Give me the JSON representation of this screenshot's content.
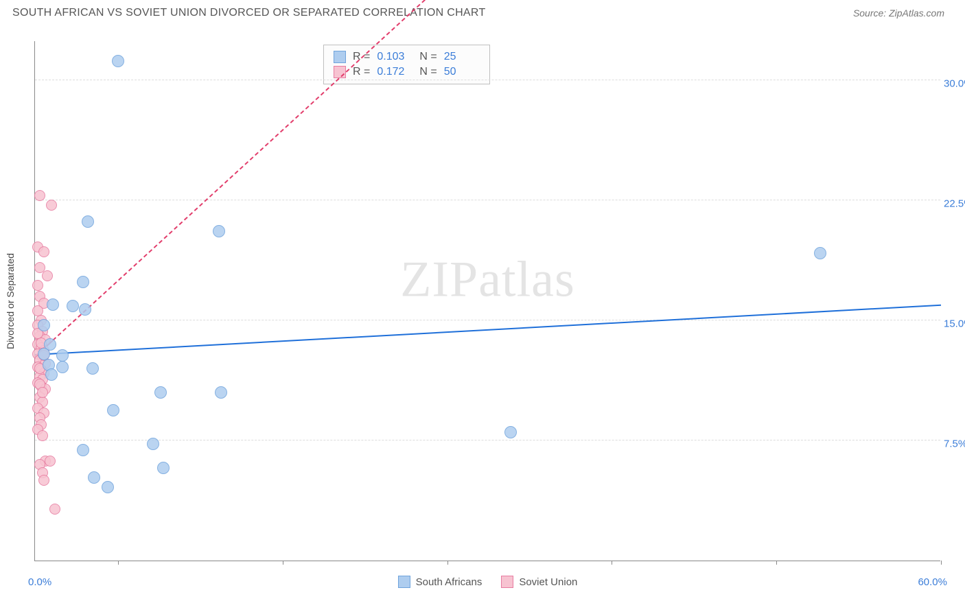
{
  "header": {
    "title": "SOUTH AFRICAN VS SOVIET UNION DIVORCED OR SEPARATED CORRELATION CHART",
    "source": "Source: ZipAtlas.com"
  },
  "chart": {
    "type": "scatter",
    "background_color": "#ffffff",
    "grid_color": "#dcdcdc",
    "axis_color": "#888888",
    "y_axis_label": "Divorced or Separated",
    "xlim": [
      0,
      60
    ],
    "ylim": [
      0,
      32.5
    ],
    "x_min_label": "0.0%",
    "x_max_label": "60.0%",
    "x_tick_positions": [
      5.5,
      16.4,
      27.3,
      38.2,
      49.1,
      60.0
    ],
    "y_ticks": [
      {
        "v": 7.5,
        "label": "7.5%"
      },
      {
        "v": 15.0,
        "label": "15.0%"
      },
      {
        "v": 22.5,
        "label": "22.5%"
      },
      {
        "v": 30.0,
        "label": "30.0%"
      }
    ],
    "watermark": "ZIPatlas",
    "series": [
      {
        "name": "South Africans",
        "fill": "#aecdef",
        "stroke": "#6fa3dc",
        "marker_radius": 9,
        "trend": {
          "y_at_x0": 12.8,
          "y_at_xmax": 15.9,
          "solid_until_x": 60,
          "color": "#1e6fd9",
          "width": 2.5
        },
        "points": [
          {
            "x": 5.5,
            "y": 31.2
          },
          {
            "x": 3.5,
            "y": 21.2
          },
          {
            "x": 12.2,
            "y": 20.6
          },
          {
            "x": 52.0,
            "y": 19.2
          },
          {
            "x": 3.2,
            "y": 17.4
          },
          {
            "x": 1.2,
            "y": 16.0
          },
          {
            "x": 2.5,
            "y": 15.9
          },
          {
            "x": 3.3,
            "y": 15.7
          },
          {
            "x": 0.6,
            "y": 14.7
          },
          {
            "x": 1.0,
            "y": 13.5
          },
          {
            "x": 1.8,
            "y": 12.8
          },
          {
            "x": 0.9,
            "y": 12.2
          },
          {
            "x": 1.8,
            "y": 12.1
          },
          {
            "x": 3.8,
            "y": 12.0
          },
          {
            "x": 8.3,
            "y": 10.5
          },
          {
            "x": 12.3,
            "y": 10.5
          },
          {
            "x": 5.2,
            "y": 9.4
          },
          {
            "x": 31.5,
            "y": 8.0
          },
          {
            "x": 7.8,
            "y": 7.3
          },
          {
            "x": 3.2,
            "y": 6.9
          },
          {
            "x": 8.5,
            "y": 5.8
          },
          {
            "x": 3.9,
            "y": 5.2
          },
          {
            "x": 4.8,
            "y": 4.6
          },
          {
            "x": 0.6,
            "y": 12.9
          },
          {
            "x": 1.1,
            "y": 11.6
          }
        ]
      },
      {
        "name": "Soviet Union",
        "fill": "#f7c3d1",
        "stroke": "#e77ba0",
        "marker_radius": 8,
        "trend": {
          "y_at_x0": 12.7,
          "y_at_xmax": 64.5,
          "solid_until_x": 1.2,
          "color": "#e23d6b",
          "width": 2
        },
        "points": [
          {
            "x": 0.3,
            "y": 22.8
          },
          {
            "x": 1.1,
            "y": 22.2
          },
          {
            "x": 0.2,
            "y": 19.6
          },
          {
            "x": 0.6,
            "y": 19.3
          },
          {
            "x": 0.3,
            "y": 18.3
          },
          {
            "x": 0.8,
            "y": 17.8
          },
          {
            "x": 0.2,
            "y": 17.2
          },
          {
            "x": 0.3,
            "y": 16.5
          },
          {
            "x": 0.6,
            "y": 16.1
          },
          {
            "x": 0.2,
            "y": 15.6
          },
          {
            "x": 0.4,
            "y": 15.0
          },
          {
            "x": 0.2,
            "y": 14.7
          },
          {
            "x": 0.5,
            "y": 14.3
          },
          {
            "x": 0.3,
            "y": 14.0
          },
          {
            "x": 0.7,
            "y": 13.8
          },
          {
            "x": 0.2,
            "y": 13.5
          },
          {
            "x": 0.4,
            "y": 13.3
          },
          {
            "x": 0.6,
            "y": 13.1
          },
          {
            "x": 0.2,
            "y": 12.9
          },
          {
            "x": 0.5,
            "y": 12.7
          },
          {
            "x": 0.3,
            "y": 12.5
          },
          {
            "x": 0.7,
            "y": 12.3
          },
          {
            "x": 0.2,
            "y": 12.1
          },
          {
            "x": 0.4,
            "y": 11.9
          },
          {
            "x": 0.6,
            "y": 11.7
          },
          {
            "x": 0.3,
            "y": 11.5
          },
          {
            "x": 0.5,
            "y": 11.3
          },
          {
            "x": 0.2,
            "y": 11.1
          },
          {
            "x": 0.4,
            "y": 10.9
          },
          {
            "x": 0.7,
            "y": 10.7
          },
          {
            "x": 0.3,
            "y": 10.2
          },
          {
            "x": 0.5,
            "y": 9.9
          },
          {
            "x": 0.2,
            "y": 9.5
          },
          {
            "x": 0.6,
            "y": 9.2
          },
          {
            "x": 0.3,
            "y": 8.9
          },
          {
            "x": 0.4,
            "y": 8.5
          },
          {
            "x": 0.2,
            "y": 8.2
          },
          {
            "x": 0.5,
            "y": 7.8
          },
          {
            "x": 0.7,
            "y": 6.2
          },
          {
            "x": 0.3,
            "y": 6.0
          },
          {
            "x": 1.0,
            "y": 6.2
          },
          {
            "x": 0.5,
            "y": 5.5
          },
          {
            "x": 0.6,
            "y": 5.0
          },
          {
            "x": 1.3,
            "y": 3.2
          },
          {
            "x": 0.3,
            "y": 12.0
          },
          {
            "x": 0.4,
            "y": 13.6
          },
          {
            "x": 0.2,
            "y": 14.2
          },
          {
            "x": 0.6,
            "y": 12.8
          },
          {
            "x": 0.3,
            "y": 11.0
          },
          {
            "x": 0.5,
            "y": 10.5
          }
        ]
      }
    ],
    "stats_box": {
      "rows": [
        {
          "swatch_fill": "#aecdef",
          "swatch_stroke": "#6fa3dc",
          "r": "0.103",
          "n": "25"
        },
        {
          "swatch_fill": "#f7c3d1",
          "swatch_stroke": "#e77ba0",
          "r": "0.172",
          "n": "50"
        }
      ]
    },
    "bottom_legend": [
      {
        "swatch_fill": "#aecdef",
        "swatch_stroke": "#6fa3dc",
        "label": "South Africans"
      },
      {
        "swatch_fill": "#f7c3d1",
        "swatch_stroke": "#e77ba0",
        "label": "Soviet Union"
      }
    ]
  }
}
